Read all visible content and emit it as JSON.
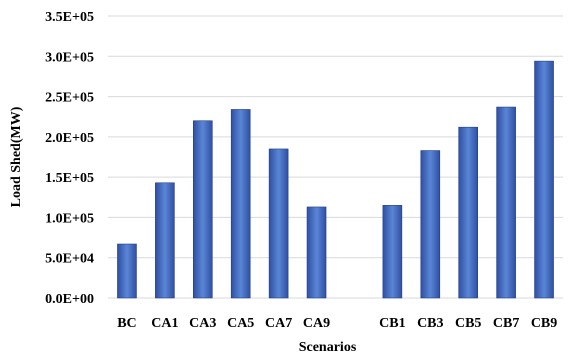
{
  "chart_data": {
    "type": "bar",
    "categories": [
      "BC",
      "CA1",
      "CA3",
      "CA5",
      "CA7",
      "CA9",
      "",
      "CB1",
      "CB3",
      "CB5",
      "CB7",
      "CB9"
    ],
    "values": [
      67000,
      143000,
      220000,
      234000,
      185000,
      113000,
      null,
      115000,
      183000,
      212000,
      237000,
      294000
    ],
    "xlabel": "Scenarios",
    "ylabel": "Load Shed(MW)",
    "ylim": [
      0,
      350000
    ],
    "yticks": [
      0,
      50000,
      100000,
      150000,
      200000,
      250000,
      300000,
      350000
    ],
    "ytick_labels": [
      "0.0E+00",
      "5.0E+04",
      "1.0E+05",
      "1.5E+05",
      "2.0E+05",
      "2.5E+05",
      "3.0E+05",
      "3.5E+05"
    ],
    "grid": true,
    "legend": "none",
    "bar_color_light": "#5a86d6",
    "bar_color_dark": "#2f4fa3",
    "grid_color": "#d9d9d9"
  }
}
